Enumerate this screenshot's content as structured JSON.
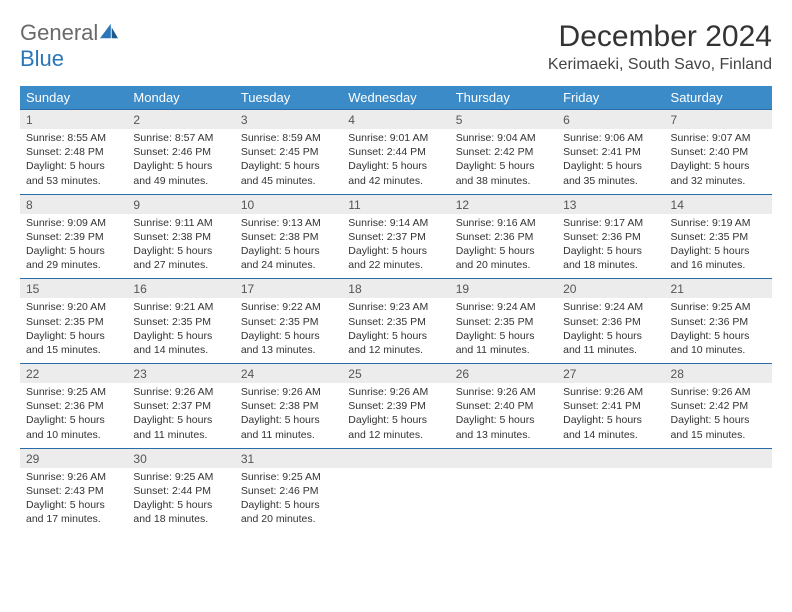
{
  "brand": {
    "name1": "General",
    "name2": "Blue"
  },
  "title": "December 2024",
  "location": "Kerimaeki, South Savo, Finland",
  "colors": {
    "header_bg": "#3b8bc9",
    "header_text": "#ffffff",
    "daynum_bg": "#ececec",
    "row_border": "#2a6ca8",
    "logo_gray": "#6a6a6a",
    "logo_blue": "#2a76b8",
    "page_bg": "#ffffff"
  },
  "fonts": {
    "title_size": 30,
    "location_size": 16,
    "dow_size": 13,
    "daynum_size": 12,
    "cell_size": 10.5
  },
  "days_of_week": [
    "Sunday",
    "Monday",
    "Tuesday",
    "Wednesday",
    "Thursday",
    "Friday",
    "Saturday"
  ],
  "weeks": [
    {
      "cells": [
        {
          "day": "1",
          "sunrise": "Sunrise: 8:55 AM",
          "sunset": "Sunset: 2:48 PM",
          "daylight": "Daylight: 5 hours and 53 minutes."
        },
        {
          "day": "2",
          "sunrise": "Sunrise: 8:57 AM",
          "sunset": "Sunset: 2:46 PM",
          "daylight": "Daylight: 5 hours and 49 minutes."
        },
        {
          "day": "3",
          "sunrise": "Sunrise: 8:59 AM",
          "sunset": "Sunset: 2:45 PM",
          "daylight": "Daylight: 5 hours and 45 minutes."
        },
        {
          "day": "4",
          "sunrise": "Sunrise: 9:01 AM",
          "sunset": "Sunset: 2:44 PM",
          "daylight": "Daylight: 5 hours and 42 minutes."
        },
        {
          "day": "5",
          "sunrise": "Sunrise: 9:04 AM",
          "sunset": "Sunset: 2:42 PM",
          "daylight": "Daylight: 5 hours and 38 minutes."
        },
        {
          "day": "6",
          "sunrise": "Sunrise: 9:06 AM",
          "sunset": "Sunset: 2:41 PM",
          "daylight": "Daylight: 5 hours and 35 minutes."
        },
        {
          "day": "7",
          "sunrise": "Sunrise: 9:07 AM",
          "sunset": "Sunset: 2:40 PM",
          "daylight": "Daylight: 5 hours and 32 minutes."
        }
      ]
    },
    {
      "cells": [
        {
          "day": "8",
          "sunrise": "Sunrise: 9:09 AM",
          "sunset": "Sunset: 2:39 PM",
          "daylight": "Daylight: 5 hours and 29 minutes."
        },
        {
          "day": "9",
          "sunrise": "Sunrise: 9:11 AM",
          "sunset": "Sunset: 2:38 PM",
          "daylight": "Daylight: 5 hours and 27 minutes."
        },
        {
          "day": "10",
          "sunrise": "Sunrise: 9:13 AM",
          "sunset": "Sunset: 2:38 PM",
          "daylight": "Daylight: 5 hours and 24 minutes."
        },
        {
          "day": "11",
          "sunrise": "Sunrise: 9:14 AM",
          "sunset": "Sunset: 2:37 PM",
          "daylight": "Daylight: 5 hours and 22 minutes."
        },
        {
          "day": "12",
          "sunrise": "Sunrise: 9:16 AM",
          "sunset": "Sunset: 2:36 PM",
          "daylight": "Daylight: 5 hours and 20 minutes."
        },
        {
          "day": "13",
          "sunrise": "Sunrise: 9:17 AM",
          "sunset": "Sunset: 2:36 PM",
          "daylight": "Daylight: 5 hours and 18 minutes."
        },
        {
          "day": "14",
          "sunrise": "Sunrise: 9:19 AM",
          "sunset": "Sunset: 2:35 PM",
          "daylight": "Daylight: 5 hours and 16 minutes."
        }
      ]
    },
    {
      "cells": [
        {
          "day": "15",
          "sunrise": "Sunrise: 9:20 AM",
          "sunset": "Sunset: 2:35 PM",
          "daylight": "Daylight: 5 hours and 15 minutes."
        },
        {
          "day": "16",
          "sunrise": "Sunrise: 9:21 AM",
          "sunset": "Sunset: 2:35 PM",
          "daylight": "Daylight: 5 hours and 14 minutes."
        },
        {
          "day": "17",
          "sunrise": "Sunrise: 9:22 AM",
          "sunset": "Sunset: 2:35 PM",
          "daylight": "Daylight: 5 hours and 13 minutes."
        },
        {
          "day": "18",
          "sunrise": "Sunrise: 9:23 AM",
          "sunset": "Sunset: 2:35 PM",
          "daylight": "Daylight: 5 hours and 12 minutes."
        },
        {
          "day": "19",
          "sunrise": "Sunrise: 9:24 AM",
          "sunset": "Sunset: 2:35 PM",
          "daylight": "Daylight: 5 hours and 11 minutes."
        },
        {
          "day": "20",
          "sunrise": "Sunrise: 9:24 AM",
          "sunset": "Sunset: 2:36 PM",
          "daylight": "Daylight: 5 hours and 11 minutes."
        },
        {
          "day": "21",
          "sunrise": "Sunrise: 9:25 AM",
          "sunset": "Sunset: 2:36 PM",
          "daylight": "Daylight: 5 hours and 10 minutes."
        }
      ]
    },
    {
      "cells": [
        {
          "day": "22",
          "sunrise": "Sunrise: 9:25 AM",
          "sunset": "Sunset: 2:36 PM",
          "daylight": "Daylight: 5 hours and 10 minutes."
        },
        {
          "day": "23",
          "sunrise": "Sunrise: 9:26 AM",
          "sunset": "Sunset: 2:37 PM",
          "daylight": "Daylight: 5 hours and 11 minutes."
        },
        {
          "day": "24",
          "sunrise": "Sunrise: 9:26 AM",
          "sunset": "Sunset: 2:38 PM",
          "daylight": "Daylight: 5 hours and 11 minutes."
        },
        {
          "day": "25",
          "sunrise": "Sunrise: 9:26 AM",
          "sunset": "Sunset: 2:39 PM",
          "daylight": "Daylight: 5 hours and 12 minutes."
        },
        {
          "day": "26",
          "sunrise": "Sunrise: 9:26 AM",
          "sunset": "Sunset: 2:40 PM",
          "daylight": "Daylight: 5 hours and 13 minutes."
        },
        {
          "day": "27",
          "sunrise": "Sunrise: 9:26 AM",
          "sunset": "Sunset: 2:41 PM",
          "daylight": "Daylight: 5 hours and 14 minutes."
        },
        {
          "day": "28",
          "sunrise": "Sunrise: 9:26 AM",
          "sunset": "Sunset: 2:42 PM",
          "daylight": "Daylight: 5 hours and 15 minutes."
        }
      ]
    },
    {
      "cells": [
        {
          "day": "29",
          "sunrise": "Sunrise: 9:26 AM",
          "sunset": "Sunset: 2:43 PM",
          "daylight": "Daylight: 5 hours and 17 minutes."
        },
        {
          "day": "30",
          "sunrise": "Sunrise: 9:25 AM",
          "sunset": "Sunset: 2:44 PM",
          "daylight": "Daylight: 5 hours and 18 minutes."
        },
        {
          "day": "31",
          "sunrise": "Sunrise: 9:25 AM",
          "sunset": "Sunset: 2:46 PM",
          "daylight": "Daylight: 5 hours and 20 minutes."
        },
        {
          "empty": true
        },
        {
          "empty": true
        },
        {
          "empty": true
        },
        {
          "empty": true
        }
      ]
    }
  ]
}
